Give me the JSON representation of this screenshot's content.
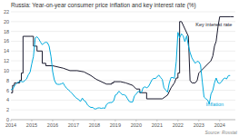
{
  "chart_data": {
    "type": "line",
    "title": "Russia: Year-on-year consumer price inflation and key interest rate (%)",
    "source": "Source: Rosstat",
    "xlim": [
      2014,
      2024.75
    ],
    "ylim": [
      0,
      22
    ],
    "xticks": [
      2014,
      2015,
      2016,
      2017,
      2018,
      2019,
      2020,
      2021,
      2022,
      2023,
      2024
    ],
    "yticks": [
      0,
      2,
      4,
      6,
      8,
      10,
      12,
      14,
      16,
      18,
      20,
      22
    ],
    "grid": true,
    "series": [
      {
        "color": "#1a1a2e",
        "x": [
          2014.0,
          2014.08,
          2014.08,
          2014.17,
          2014.17,
          2014.25,
          2014.25,
          2014.42,
          2014.42,
          2014.5,
          2014.5,
          2014.58,
          2014.58,
          2014.92,
          2014.92,
          2015.08,
          2015.08,
          2015.25,
          2015.25,
          2015.5,
          2015.5,
          2015.67,
          2015.67,
          2016.0,
          2016.0,
          2016.5,
          2016.5,
          2016.83,
          2016.83,
          2017.17,
          2017.17,
          2017.5,
          2017.5,
          2017.83,
          2017.83,
          2018.08,
          2018.08,
          2018.58,
          2018.58,
          2018.83,
          2018.83,
          2018.92,
          2018.92,
          2019.25,
          2019.25,
          2019.5,
          2019.5,
          2019.83,
          2019.83,
          2020.0,
          2020.0,
          2020.17,
          2020.17,
          2020.5,
          2020.5,
          2021.25,
          2021.25,
          2021.5,
          2021.5,
          2021.67,
          2021.67,
          2021.83,
          2021.83,
          2021.92,
          2021.92,
          2022.0,
          2022.0,
          2022.08,
          2022.08,
          2022.17,
          2022.17,
          2022.5,
          2022.5,
          2022.58,
          2022.58,
          2022.67,
          2022.67,
          2022.83,
          2022.83,
          2022.92,
          2022.92,
          2023.0,
          2023.0,
          2023.58,
          2023.58,
          2023.67,
          2023.67,
          2023.75,
          2023.75,
          2023.83,
          2023.83,
          2023.92,
          2023.92,
          2024.0,
          2024.0,
          2024.5,
          2024.5,
          2024.67
        ],
        "values": [
          5.5,
          5.5,
          7.0,
          7.0,
          7.5,
          7.5,
          7.5,
          7.5,
          8.0,
          8.0,
          9.5,
          9.5,
          17.0,
          17.0,
          17.0,
          17.0,
          15.0,
          15.0,
          14.0,
          14.0,
          11.5,
          11.5,
          11.0,
          11.0,
          11.0,
          10.5,
          10.5,
          10.0,
          10.0,
          10.0,
          10.0,
          9.75,
          9.75,
          9.0,
          9.0,
          8.25,
          8.25,
          7.25,
          7.25,
          7.25,
          7.5,
          7.5,
          7.75,
          7.75,
          7.75,
          7.5,
          7.5,
          7.0,
          7.0,
          6.25,
          6.25,
          6.25,
          5.5,
          5.5,
          4.25,
          4.25,
          4.25,
          5.0,
          5.0,
          6.5,
          6.5,
          7.5,
          7.5,
          8.5,
          8.5,
          8.5,
          9.5,
          9.5,
          20.0,
          20.0,
          20.0,
          17.0,
          17.0,
          8.0,
          8.0,
          7.5,
          7.5,
          7.5,
          7.5,
          8.0,
          8.0,
          9.5,
          9.5,
          12.0,
          12.0,
          13.0,
          13.0,
          15.0,
          15.0,
          16.0,
          16.0,
          19.0,
          19.0,
          21.0,
          21.0,
          21.0,
          21.0,
          21.0
        ]
      },
      {
        "color": "#00aadd",
        "x": [
          2014.0,
          2014.08,
          2014.17,
          2014.25,
          2014.33,
          2014.42,
          2014.5,
          2014.58,
          2014.67,
          2014.75,
          2014.83,
          2014.92,
          2015.0,
          2015.08,
          2015.17,
          2015.25,
          2015.33,
          2015.42,
          2015.5,
          2015.58,
          2015.67,
          2015.75,
          2015.83,
          2015.92,
          2016.0,
          2016.08,
          2016.17,
          2016.25,
          2016.33,
          2016.42,
          2016.5,
          2016.58,
          2016.67,
          2016.75,
          2016.83,
          2016.92,
          2017.0,
          2017.08,
          2017.17,
          2017.25,
          2017.33,
          2017.42,
          2017.5,
          2017.58,
          2017.67,
          2017.75,
          2017.83,
          2017.92,
          2018.0,
          2018.08,
          2018.17,
          2018.25,
          2018.33,
          2018.42,
          2018.5,
          2018.58,
          2018.67,
          2018.75,
          2018.83,
          2018.92,
          2019.0,
          2019.08,
          2019.17,
          2019.25,
          2019.33,
          2019.42,
          2019.5,
          2019.58,
          2019.67,
          2019.75,
          2019.83,
          2019.92,
          2020.0,
          2020.08,
          2020.17,
          2020.25,
          2020.33,
          2020.42,
          2020.5,
          2020.58,
          2020.67,
          2020.75,
          2020.83,
          2020.92,
          2021.0,
          2021.08,
          2021.17,
          2021.25,
          2021.33,
          2021.42,
          2021.5,
          2021.58,
          2021.67,
          2021.75,
          2021.83,
          2021.92,
          2022.0,
          2022.08,
          2022.17,
          2022.25,
          2022.33,
          2022.42,
          2022.5,
          2022.58,
          2022.67,
          2022.75,
          2022.83,
          2022.92,
          2023.0,
          2023.08,
          2023.17,
          2023.25,
          2023.33,
          2023.42,
          2023.5,
          2023.58,
          2023.67,
          2023.75,
          2023.83,
          2023.92,
          2024.0,
          2024.08,
          2024.17,
          2024.25,
          2024.33,
          2024.42,
          2024.5
        ],
        "values": [
          6.1,
          6.2,
          6.9,
          7.3,
          7.6,
          7.8,
          7.8,
          7.7,
          8.0,
          8.3,
          9.1,
          9.7,
          11.4,
          12.9,
          16.7,
          16.9,
          16.5,
          15.8,
          15.3,
          15.6,
          15.8,
          15.7,
          15.0,
          12.9,
          9.8,
          8.1,
          7.3,
          7.2,
          7.2,
          7.3,
          7.5,
          6.9,
          6.4,
          6.1,
          5.8,
          5.4,
          5.0,
          4.6,
          4.3,
          4.1,
          3.7,
          4.4,
          3.9,
          3.7,
          3.0,
          2.7,
          2.5,
          2.5,
          2.2,
          2.2,
          2.4,
          2.4,
          2.3,
          2.4,
          2.3,
          3.1,
          3.4,
          3.5,
          3.5,
          3.8,
          5.0,
          5.2,
          5.8,
          5.5,
          5.1,
          5.1,
          4.9,
          4.3,
          3.7,
          3.6,
          3.6,
          4.9,
          5.2,
          5.7,
          5.8,
          5.5,
          6.5,
          6.7,
          6.5,
          6.7,
          7.4,
          8.1,
          8.4,
          8.4,
          8.7,
          9.1,
          8.6,
          8.2,
          6.5,
          6.0,
          5.6,
          7.4,
          8.6,
          8.6,
          8.4,
          11.9,
          17.8,
          16.7,
          17.5,
          17.1,
          15.9,
          17.1,
          15.1,
          13.7,
          12.6,
          12.0,
          11.5,
          11.9,
          11.8,
          11.2,
          7.6,
          4.6,
          4.3,
          4.0,
          3.2,
          5.2,
          6.0,
          7.5,
          8.5,
          7.5,
          7.4,
          7.7,
          8.3,
          8.5,
          8.3,
          9.0,
          9.0
        ]
      }
    ],
    "annotations": [
      {
        "text": "Key interest rate",
        "x": 2022.85,
        "y": 19.5,
        "color": "#1a1a2e"
      },
      {
        "text": "Inflation",
        "x": 2023.35,
        "y": 3.2,
        "color": "#00aadd"
      }
    ]
  }
}
